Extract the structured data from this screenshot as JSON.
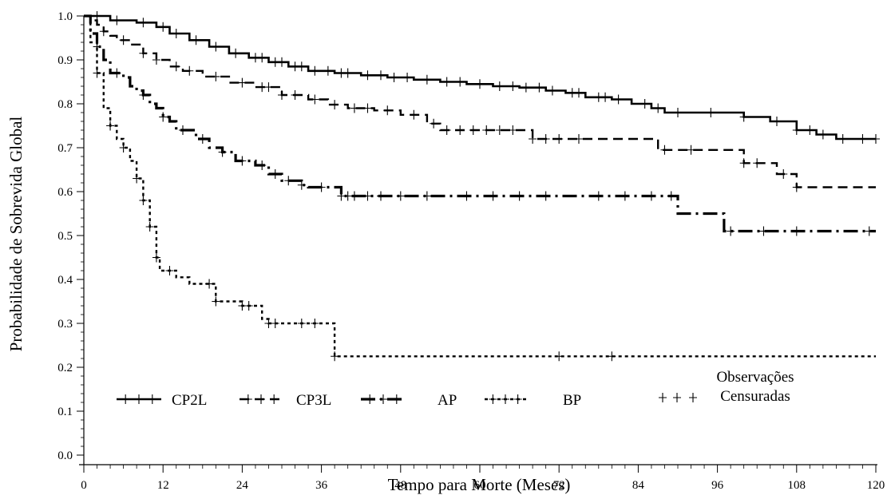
{
  "chart_data": {
    "type": "line",
    "step": true,
    "ylabel": "Probabilidade de Sobrevida Global",
    "xlabel": "Tempo para Morte (Meses)",
    "xlim": [
      0,
      120
    ],
    "ylim": [
      0.0,
      1.0
    ],
    "x_ticks": [
      "0",
      "12",
      "24",
      "36",
      "48",
      "60",
      "72",
      "84",
      "96",
      "108",
      "120"
    ],
    "y_ticks": [
      "0.0",
      "0.1",
      "0.2",
      "0.3",
      "0.4",
      "0.5",
      "0.6",
      "0.7",
      "0.8",
      "0.9",
      "1.0"
    ],
    "grid": false,
    "legend_position": "bottom",
    "censor_legend": "Observações Censuradas",
    "censor_legend_lines": [
      "Observações",
      "Censuradas"
    ],
    "series": [
      {
        "name": "CP2L",
        "line_style": "solid",
        "points": [
          [
            0,
            1.0
          ],
          [
            4,
            0.99
          ],
          [
            8,
            0.985
          ],
          [
            11,
            0.975
          ],
          [
            13,
            0.96
          ],
          [
            16,
            0.945
          ],
          [
            19,
            0.93
          ],
          [
            22,
            0.915
          ],
          [
            25,
            0.905
          ],
          [
            28,
            0.895
          ],
          [
            31,
            0.885
          ],
          [
            34,
            0.875
          ],
          [
            38,
            0.87
          ],
          [
            42,
            0.865
          ],
          [
            46,
            0.86
          ],
          [
            50,
            0.855
          ],
          [
            54,
            0.85
          ],
          [
            58,
            0.845
          ],
          [
            62,
            0.84
          ],
          [
            66,
            0.837
          ],
          [
            70,
            0.83
          ],
          [
            73,
            0.825
          ],
          [
            76,
            0.815
          ],
          [
            80,
            0.81
          ],
          [
            83,
            0.8
          ],
          [
            86,
            0.79
          ],
          [
            88,
            0.78
          ],
          [
            100,
            0.77
          ],
          [
            104,
            0.76
          ],
          [
            108,
            0.74
          ],
          [
            111,
            0.73
          ],
          [
            114,
            0.72
          ],
          [
            120,
            0.72
          ]
        ],
        "censored_x": [
          2,
          5,
          9,
          12,
          14,
          17,
          20,
          23,
          26,
          27,
          29,
          30,
          32,
          33,
          35,
          37,
          39,
          40,
          43,
          45,
          47,
          49,
          52,
          55,
          57,
          60,
          63,
          65,
          67,
          69,
          71,
          74,
          75,
          78,
          79,
          81,
          85,
          87,
          90,
          95,
          100,
          105,
          108,
          110,
          112,
          115,
          118,
          120
        ]
      },
      {
        "name": "CP3L",
        "line_style": "dashed",
        "points": [
          [
            0,
            1.0
          ],
          [
            1,
            0.99
          ],
          [
            2,
            0.98
          ],
          [
            3,
            0.965
          ],
          [
            4,
            0.955
          ],
          [
            5,
            0.945
          ],
          [
            7,
            0.935
          ],
          [
            9,
            0.915
          ],
          [
            11,
            0.9
          ],
          [
            13,
            0.885
          ],
          [
            15,
            0.875
          ],
          [
            18,
            0.862
          ],
          [
            22,
            0.848
          ],
          [
            26,
            0.838
          ],
          [
            30,
            0.82
          ],
          [
            34,
            0.81
          ],
          [
            37,
            0.798
          ],
          [
            40,
            0.79
          ],
          [
            44,
            0.785
          ],
          [
            48,
            0.775
          ],
          [
            52,
            0.755
          ],
          [
            54,
            0.74
          ],
          [
            68,
            0.72
          ],
          [
            87,
            0.695
          ],
          [
            100,
            0.665
          ],
          [
            105,
            0.64
          ],
          [
            108,
            0.61
          ],
          [
            120,
            0.61
          ]
        ],
        "censored_x": [
          3,
          6,
          9,
          11,
          14,
          16,
          20,
          24,
          27,
          28,
          30,
          32,
          35,
          38,
          41,
          43,
          46,
          50,
          53,
          55,
          57,
          59,
          61,
          63,
          65,
          68,
          70,
          72,
          75,
          88,
          92,
          100,
          102,
          106,
          108
        ]
      },
      {
        "name": "AP",
        "line_style": "dash-dot",
        "points": [
          [
            0,
            1.0
          ],
          [
            1,
            0.96
          ],
          [
            2,
            0.93
          ],
          [
            3,
            0.9
          ],
          [
            4,
            0.87
          ],
          [
            6,
            0.86
          ],
          [
            7,
            0.84
          ],
          [
            8,
            0.83
          ],
          [
            9,
            0.82
          ],
          [
            10,
            0.8
          ],
          [
            11,
            0.79
          ],
          [
            12,
            0.77
          ],
          [
            13,
            0.76
          ],
          [
            14,
            0.74
          ],
          [
            17,
            0.72
          ],
          [
            19,
            0.7
          ],
          [
            21,
            0.69
          ],
          [
            23,
            0.67
          ],
          [
            26,
            0.66
          ],
          [
            28,
            0.64
          ],
          [
            30,
            0.625
          ],
          [
            33,
            0.615
          ],
          [
            34,
            0.61
          ],
          [
            39,
            0.59
          ],
          [
            90,
            0.55
          ],
          [
            97,
            0.51
          ],
          [
            120,
            0.51
          ]
        ],
        "censored_x": [
          2,
          5,
          9,
          12,
          15,
          18,
          21,
          24,
          27,
          29,
          31,
          33,
          36,
          39,
          40,
          41,
          43,
          45,
          48,
          52,
          58,
          62,
          66,
          70,
          78,
          82,
          86,
          89,
          98,
          103,
          108,
          119
        ]
      },
      {
        "name": "BP",
        "line_style": "dotted",
        "points": [
          [
            0,
            1.0
          ],
          [
            1,
            0.94
          ],
          [
            2,
            0.87
          ],
          [
            3,
            0.79
          ],
          [
            4,
            0.75
          ],
          [
            5,
            0.72
          ],
          [
            6,
            0.7
          ],
          [
            7,
            0.67
          ],
          [
            8,
            0.63
          ],
          [
            9,
            0.58
          ],
          [
            10,
            0.52
          ],
          [
            11,
            0.45
          ],
          [
            11.5,
            0.42
          ],
          [
            14,
            0.405
          ],
          [
            16,
            0.39
          ],
          [
            20,
            0.35
          ],
          [
            24,
            0.34
          ],
          [
            27,
            0.31
          ],
          [
            28,
            0.3
          ],
          [
            38,
            0.225
          ],
          [
            120,
            0.225
          ]
        ],
        "censored_x": [
          2,
          4,
          6,
          8,
          9,
          10,
          11,
          13,
          19,
          20,
          24,
          25,
          28,
          29,
          33,
          35,
          38,
          72,
          80
        ]
      }
    ]
  }
}
